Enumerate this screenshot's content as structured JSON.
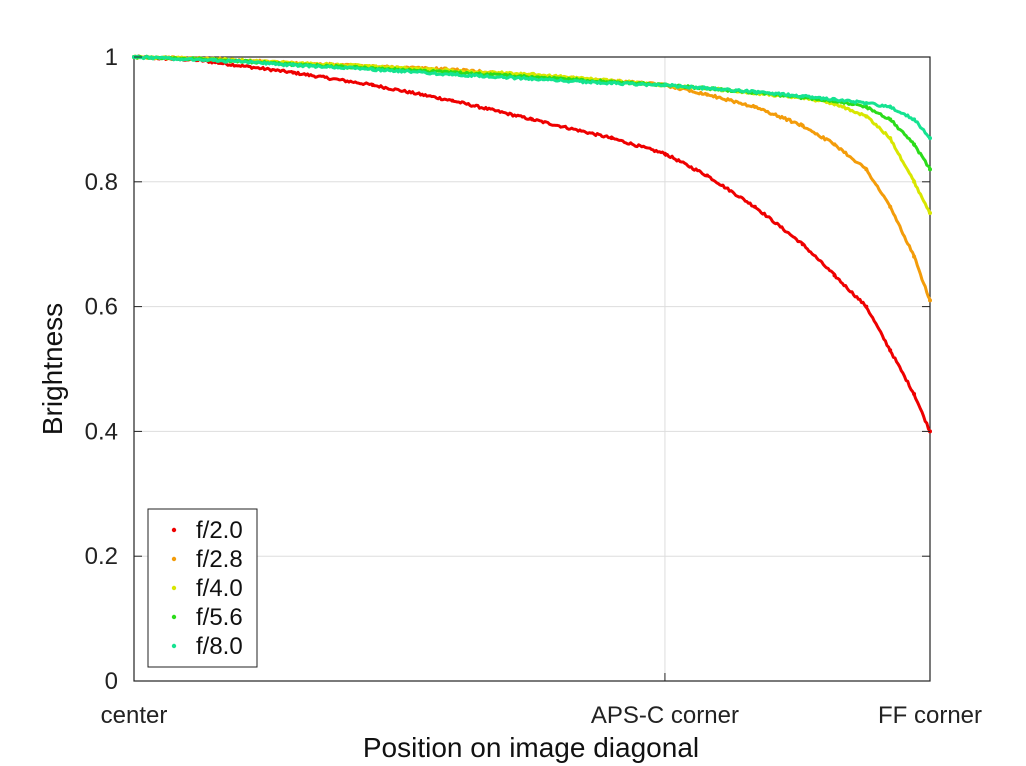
{
  "chart_data": {
    "type": "scatter",
    "title": "",
    "xlabel": "Position on image diagonal",
    "ylabel": "Brightness",
    "xlim": [
      0,
      1
    ],
    "ylim": [
      0,
      1
    ],
    "grid": true,
    "legend_placement": "bottom-left",
    "x_ticks": [
      {
        "value": 0,
        "label": "center"
      },
      {
        "value": 0.667,
        "label": "APS-C corner"
      },
      {
        "value": 1,
        "label": "FF corner"
      }
    ],
    "y_ticks": [
      {
        "value": 0,
        "label": "0"
      },
      {
        "value": 0.2,
        "label": "0.2"
      },
      {
        "value": 0.4,
        "label": "0.4"
      },
      {
        "value": 0.6,
        "label": "0.6"
      },
      {
        "value": 0.8,
        "label": "0.8"
      },
      {
        "value": 1,
        "label": "1"
      }
    ],
    "series": [
      {
        "name": "f/2.0",
        "color": "#ee0000",
        "x": [
          0,
          0.08,
          0.2,
          0.3,
          0.4,
          0.5,
          0.6,
          0.667,
          0.72,
          0.78,
          0.84,
          0.88,
          0.92,
          0.95,
          0.98,
          1.0
        ],
        "y": [
          1.0,
          0.995,
          0.975,
          0.955,
          0.93,
          0.9,
          0.87,
          0.845,
          0.81,
          0.76,
          0.7,
          0.65,
          0.6,
          0.53,
          0.46,
          0.4
        ]
      },
      {
        "name": "f/2.8",
        "color": "#f39c0a",
        "x": [
          0,
          0.1,
          0.2,
          0.3,
          0.4,
          0.5,
          0.6,
          0.667,
          0.72,
          0.78,
          0.84,
          0.88,
          0.92,
          0.95,
          0.98,
          1.0
        ],
        "y": [
          1.0,
          0.997,
          0.99,
          0.985,
          0.98,
          0.97,
          0.962,
          0.955,
          0.94,
          0.92,
          0.89,
          0.86,
          0.82,
          0.76,
          0.68,
          0.61
        ]
      },
      {
        "name": "f/4.0",
        "color": "#d8e600",
        "x": [
          0,
          0.1,
          0.2,
          0.3,
          0.4,
          0.5,
          0.6,
          0.667,
          0.72,
          0.78,
          0.84,
          0.88,
          0.92,
          0.95,
          0.98,
          1.0
        ],
        "y": [
          1.0,
          0.997,
          0.99,
          0.985,
          0.978,
          0.972,
          0.962,
          0.955,
          0.95,
          0.942,
          0.935,
          0.925,
          0.905,
          0.87,
          0.8,
          0.75
        ]
      },
      {
        "name": "f/5.6",
        "color": "#2bdc1a",
        "x": [
          0,
          0.1,
          0.2,
          0.3,
          0.4,
          0.5,
          0.6,
          0.667,
          0.72,
          0.78,
          0.84,
          0.88,
          0.92,
          0.95,
          0.98,
          1.0
        ],
        "y": [
          1.0,
          0.996,
          0.988,
          0.982,
          0.975,
          0.968,
          0.96,
          0.955,
          0.95,
          0.943,
          0.935,
          0.93,
          0.92,
          0.9,
          0.86,
          0.82
        ]
      },
      {
        "name": "f/8.0",
        "color": "#15e391",
        "x": [
          0,
          0.1,
          0.2,
          0.3,
          0.4,
          0.5,
          0.6,
          0.667,
          0.72,
          0.78,
          0.84,
          0.88,
          0.92,
          0.95,
          0.98,
          1.0
        ],
        "y": [
          1.0,
          0.995,
          0.987,
          0.98,
          0.972,
          0.965,
          0.958,
          0.955,
          0.95,
          0.944,
          0.937,
          0.932,
          0.926,
          0.92,
          0.9,
          0.87
        ]
      }
    ]
  }
}
